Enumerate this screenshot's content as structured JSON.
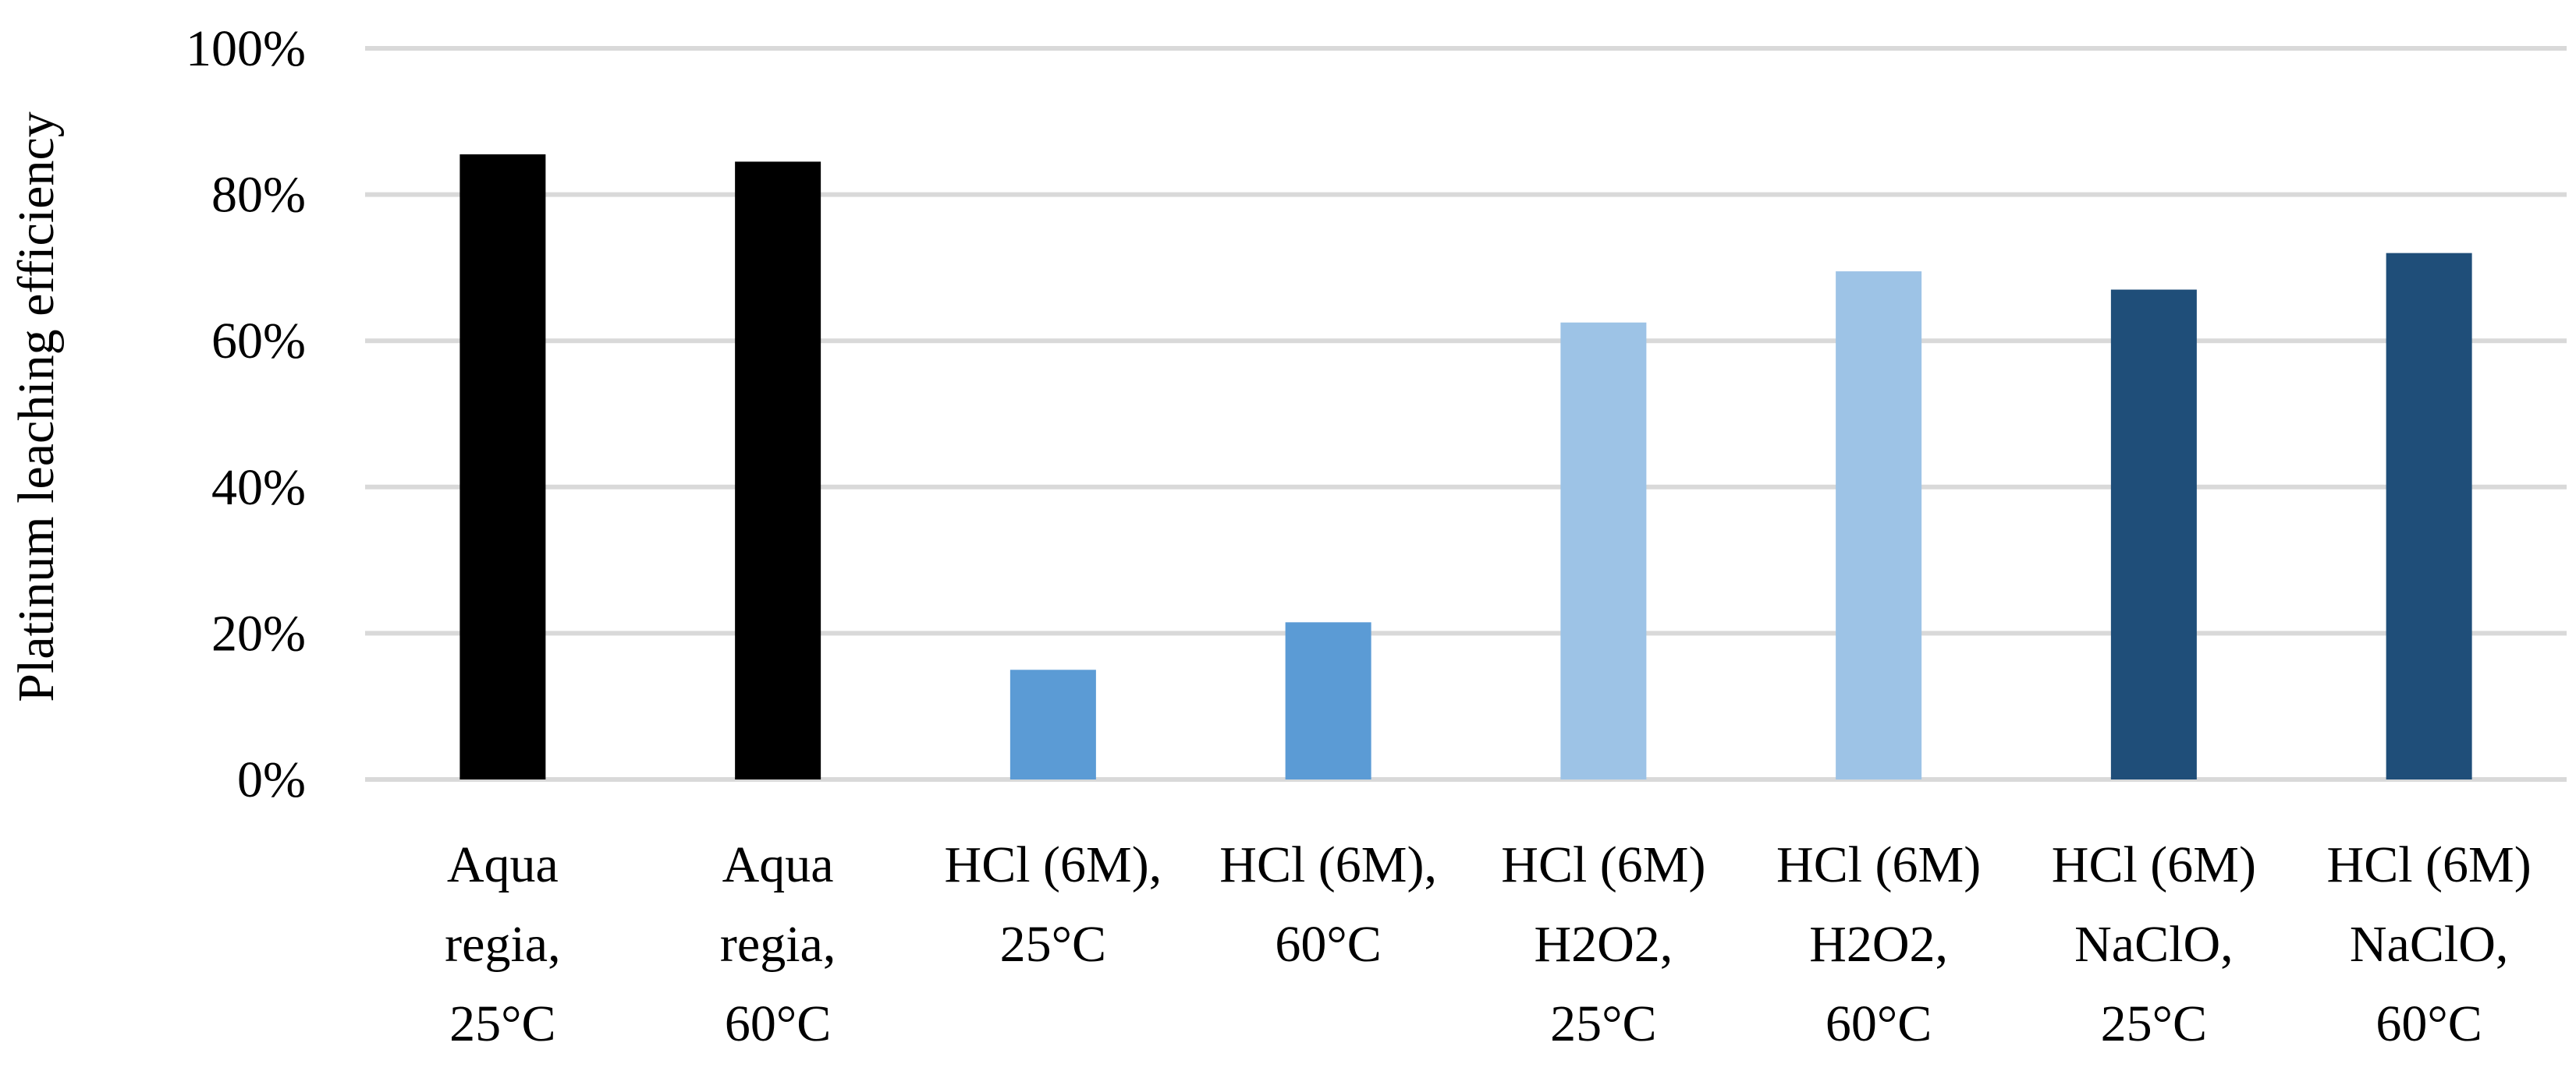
{
  "chart_data": {
    "type": "bar",
    "title": "",
    "xlabel": "",
    "ylabel": "Platinum leaching efficiency",
    "ylim": [
      0,
      100
    ],
    "y_ticks": [
      "0%",
      "20%",
      "40%",
      "60%",
      "80%",
      "100%"
    ],
    "y_tick_values": [
      0,
      20,
      40,
      60,
      80,
      100
    ],
    "grid": true,
    "legend": "none",
    "categories": [
      [
        "Aqua",
        "regia,",
        "25°C"
      ],
      [
        "Aqua",
        "regia,",
        "60°C"
      ],
      [
        "HCl (6M),",
        "25°C"
      ],
      [
        "HCl (6M),",
        "60°C"
      ],
      [
        "HCl (6M)",
        "H2O2,",
        "25°C"
      ],
      [
        "HCl (6M)",
        "H2O2,",
        "60°C"
      ],
      [
        "HCl (6M)",
        "NaClO,",
        "25°C"
      ],
      [
        "HCl (6M)",
        "NaClO,",
        "60°C"
      ]
    ],
    "values": [
      85.5,
      84.5,
      15,
      21.5,
      62.5,
      69.5,
      67,
      72
    ],
    "colors": [
      "#000000",
      "#000000",
      "#5b9bd5",
      "#5b9bd5",
      "#9dc3e6",
      "#9dc3e6",
      "#1f4e79",
      "#1f4e79"
    ],
    "gridline_color": "#d9d9d9"
  }
}
